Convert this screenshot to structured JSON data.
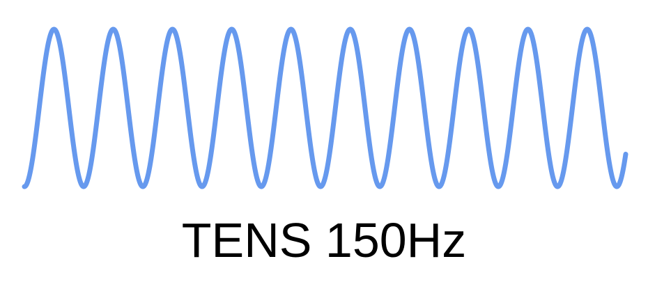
{
  "caption": "TENS 150Hz",
  "waveform": {
    "type": "sine",
    "cycles_shown": 10.15,
    "stroke_color": "#6699ee",
    "start_phase_fraction": -0.25
  },
  "background_color": "#ffffff",
  "text_color": "#000000"
}
